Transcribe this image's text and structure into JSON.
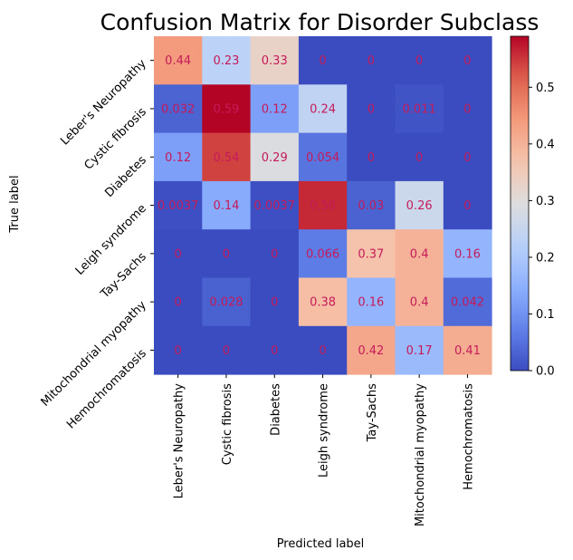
{
  "chart_data": {
    "type": "heatmap",
    "title": "Confusion Matrix for Disorder Subclass",
    "xlabel": "Predicted label",
    "ylabel": "True label",
    "row_labels": [
      "Leber's Neuropathy",
      "Cystic fibrosis",
      "Diabetes",
      "Leigh syndrome",
      "Tay-Sachs",
      "Mitochondrial myopathy",
      "Hemochromatosis"
    ],
    "col_labels": [
      "Leber's Neuropathy",
      "Cystic fibrosis",
      "Diabetes",
      "Leigh syndrome",
      "Tay-Sachs",
      "Mitochondrial myopathy",
      "Hemochromatosis"
    ],
    "values": [
      [
        0.44,
        0.23,
        0.33,
        0,
        0,
        0,
        0
      ],
      [
        0.032,
        0.59,
        0.12,
        0.24,
        0,
        0.011,
        0
      ],
      [
        0.12,
        0.54,
        0.29,
        0.054,
        0,
        0,
        0
      ],
      [
        0.0037,
        0.14,
        0.0037,
        0.56,
        0.03,
        0.26,
        0
      ],
      [
        0,
        0,
        0,
        0.066,
        0.37,
        0.4,
        0.16
      ],
      [
        0,
        0.028,
        0,
        0.38,
        0.16,
        0.4,
        0.042
      ],
      [
        0,
        0,
        0,
        0,
        0.42,
        0.17,
        0.41
      ]
    ],
    "value_labels": [
      [
        "0.44",
        "0.23",
        "0.33",
        "0",
        "0",
        "0",
        "0"
      ],
      [
        "0.032",
        "0.59",
        "0.12",
        "0.24",
        "0",
        "0.011",
        "0"
      ],
      [
        "0.12",
        "0.54",
        "0.29",
        "0.054",
        "0",
        "0",
        "0"
      ],
      [
        "0.0037",
        "0.14",
        "0.0037",
        "0.56",
        "0.03",
        "0.26",
        "0"
      ],
      [
        "0",
        "0",
        "0",
        "0.066",
        "0.37",
        "0.4",
        "0.16"
      ],
      [
        "0",
        "0.028",
        "0",
        "0.38",
        "0.16",
        "0.4",
        "0.042"
      ],
      [
        "0",
        "0",
        "0",
        "0",
        "0.42",
        "0.17",
        "0.41"
      ]
    ],
    "colormap": "coolwarm",
    "vmin": 0,
    "vmax": 0.59,
    "annotation_color": "#c51b5a",
    "colorbar_ticks": [
      "0.0",
      "0.1",
      "0.2",
      "0.3",
      "0.4",
      "0.5"
    ],
    "colorbar_tick_values": [
      0,
      0.1,
      0.2,
      0.3,
      0.4,
      0.5
    ]
  }
}
